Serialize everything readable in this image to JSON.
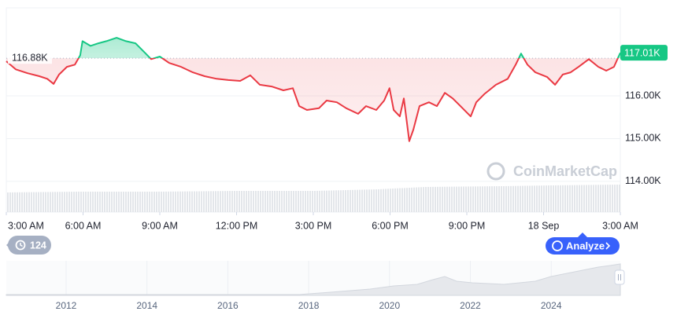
{
  "chart_data": {
    "type": "line",
    "x": [
      0,
      0.37,
      0.83,
      1.29,
      1.6,
      1.85,
      2.06,
      2.37,
      2.68,
      2.89,
      2.98,
      3.29,
      3.6,
      3.91,
      4.31,
      4.68,
      5.05,
      5.45,
      5.66,
      6,
      6.37,
      6.83,
      7.29,
      7.75,
      8.22,
      8.68,
      9.14,
      9.54,
      9.91,
      10.37,
      10.83,
      11.2,
      11.45,
      11.75,
      12.22,
      12.52,
      12.92,
      13.29,
      13.75,
      14.06,
      14.46,
      14.77,
      14.98,
      15.14,
      15.38,
      15.54,
      15.75,
      15.91,
      16.15,
      16.52,
      16.83,
      17.14,
      17.45,
      17.75,
      18.15,
      18.37,
      18.68,
      19.14,
      19.6,
      19.91,
      20.12,
      20.37,
      20.68,
      21.14,
      21.45,
      21.75,
      22.06,
      22.37,
      22.77,
      23.14,
      23.45,
      23.75,
      24
    ],
    "values": [
      116810,
      116620,
      116530,
      116460,
      116400,
      116280,
      116500,
      116680,
      116730,
      116950,
      117280,
      117170,
      117230,
      117280,
      117360,
      117280,
      117230,
      116990,
      116860,
      116920,
      116770,
      116680,
      116550,
      116460,
      116400,
      116370,
      116350,
      116480,
      116260,
      116220,
      116130,
      116180,
      115760,
      115670,
      115710,
      115890,
      115850,
      115710,
      115580,
      115760,
      115670,
      115890,
      116180,
      115670,
      115520,
      115940,
      114940,
      115210,
      115760,
      115850,
      115760,
      116070,
      115940,
      115760,
      115520,
      115850,
      116040,
      116260,
      116400,
      116730,
      116990,
      116730,
      116550,
      116440,
      116260,
      116500,
      116550,
      116680,
      116860,
      116680,
      116590,
      116680,
      117010
    ],
    "color_up": "#16c784",
    "color_down": "#ea3943",
    "baseline": {
      "value": 116880,
      "label": "116.88K"
    },
    "last_price": {
      "value": 117010,
      "label": "117.01K"
    },
    "xlim": [
      0,
      24
    ],
    "xticks": [
      {
        "value": 0,
        "label": "3:00 AM"
      },
      {
        "value": 3,
        "label": "6:00 AM"
      },
      {
        "value": 6,
        "label": "9:00 AM"
      },
      {
        "value": 9,
        "label": "12:00 PM"
      },
      {
        "value": 12,
        "label": "3:00 PM"
      },
      {
        "value": 15,
        "label": "6:00 PM"
      },
      {
        "value": 18,
        "label": "9:00 PM"
      },
      {
        "value": 21,
        "label": "18 Sep"
      },
      {
        "value": 24,
        "label": "3:00 AM"
      }
    ],
    "ylim": [
      113280,
      118060
    ],
    "yticks": [
      {
        "value": 114000,
        "label": "114.00K"
      },
      {
        "value": 115000,
        "label": "115.00K"
      },
      {
        "value": 116000,
        "label": "116.00K"
      }
    ],
    "grid": true,
    "watermark": "CoinMarketCap",
    "history_count": 124,
    "button": "Analyze",
    "navigator": {
      "xlim": [
        2010.52,
        2025.71
      ],
      "xticks": [
        2012,
        2014,
        2016,
        2018,
        2020,
        2022,
        2024
      ]
    }
  }
}
